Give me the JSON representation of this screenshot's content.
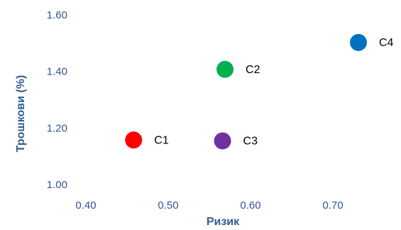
{
  "chart_data": {
    "type": "scatter",
    "x_label": "Ризик",
    "y_label": "Трошкови (%)",
    "xlim": [
      0.4,
      0.75
    ],
    "ylim": [
      1.0,
      1.6
    ],
    "xticks": [
      {
        "value": 0.4,
        "label": "0.40"
      },
      {
        "value": 0.5,
        "label": "0.50"
      },
      {
        "value": 0.6,
        "label": "0.60"
      },
      {
        "value": 0.7,
        "label": "0.70"
      }
    ],
    "yticks": [
      {
        "value": 1.0,
        "label": "1.00"
      },
      {
        "value": 1.2,
        "label": "1.20"
      },
      {
        "value": 1.4,
        "label": "1.40"
      },
      {
        "value": 1.6,
        "label": "1.60"
      }
    ],
    "grid": false,
    "series": [
      {
        "name": "C1",
        "color": "#ff0000",
        "x": [
          0.458
        ],
        "values": [
          1.16
        ]
      },
      {
        "name": "C2",
        "color": "#00b050",
        "x": [
          0.569
        ],
        "values": [
          1.41
        ]
      },
      {
        "name": "C3",
        "color": "#7030a0",
        "x": [
          0.566
        ],
        "values": [
          1.157
        ]
      },
      {
        "name": "C4",
        "color": "#0070c0",
        "x": [
          0.731
        ],
        "values": [
          1.505
        ]
      }
    ]
  }
}
